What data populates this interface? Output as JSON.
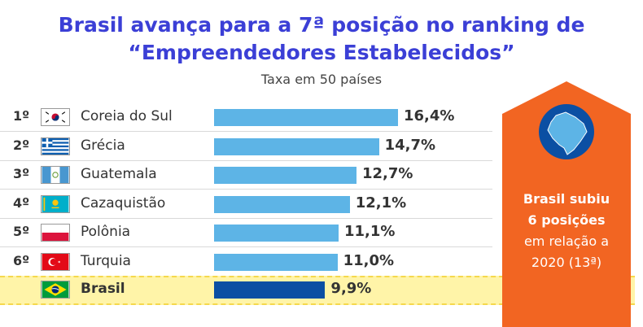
{
  "header": {
    "title_line1": "Brasil avança para a 7ª posição no ranking de",
    "title_line2": "“Empreendedores Estabelecidos”",
    "subtitle": "Taxa em 50 países"
  },
  "callout": {
    "line1": "Brasil subiu",
    "line2": "6 posições",
    "line3": "em relação a",
    "line4": "2020 (13ª)",
    "icon": "brazil-map-icon",
    "color": "#f26522"
  },
  "colors": {
    "bar": "#5db4e6",
    "highlight_bar": "#0b4fa3",
    "title": "#3b3fd6",
    "highlight_bg": "#fff4a8"
  },
  "chart_data": {
    "type": "bar",
    "title": "Brasil avança para a 7ª posição no ranking de “Empreendedores Estabelecidos”",
    "subtitle": "Taxa em 50 países",
    "orientation": "horizontal",
    "categories": [
      "Coreia do Sul",
      "Grécia",
      "Guatemala",
      "Cazaquistão",
      "Polônia",
      "Turquia",
      "Brasil"
    ],
    "ranks": [
      "1º",
      "2º",
      "3º",
      "4º",
      "5º",
      "6º",
      ""
    ],
    "values": [
      16.4,
      14.7,
      12.7,
      12.1,
      11.1,
      11.0,
      9.9
    ],
    "value_labels": [
      "16,4%",
      "14,7%",
      "12,7%",
      "12,1%",
      "11,1%",
      "11,0%",
      "9,9%"
    ],
    "flags": [
      "south-korea-flag-icon",
      "greece-flag-icon",
      "guatemala-flag-icon",
      "kazakhstan-flag-icon",
      "poland-flag-icon",
      "turkey-flag-icon",
      "brazil-flag-icon"
    ],
    "highlight": "Brasil",
    "xlim": [
      0,
      16.4
    ],
    "grid": false,
    "legend": "none"
  }
}
